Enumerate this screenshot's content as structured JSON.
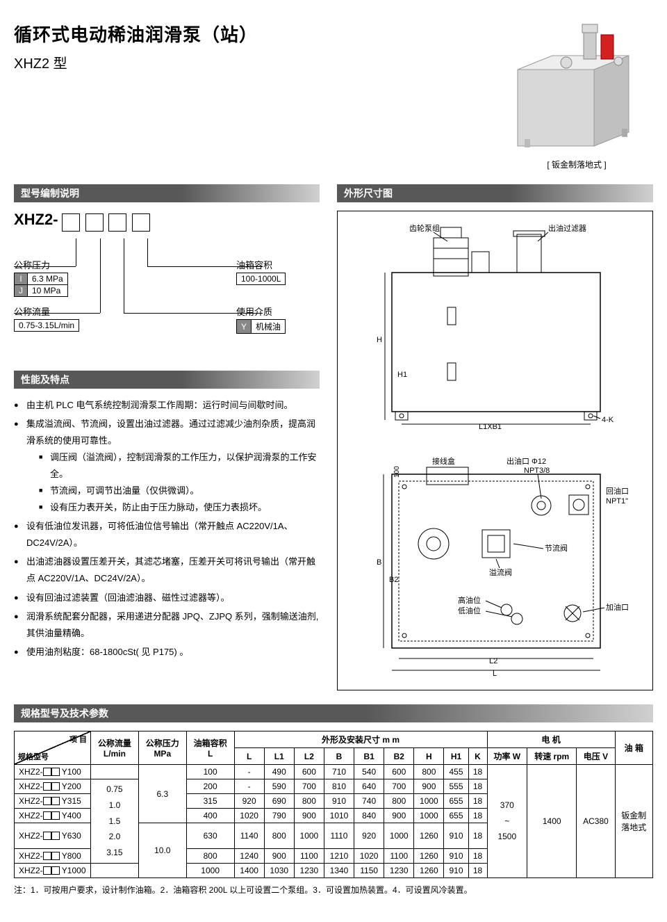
{
  "title": "循环式电动稀油润滑泵（站）",
  "model": "XHZ2 型",
  "product_caption": "[ 钣金制落地式 ]",
  "sections": {
    "model_spec": "型号编制说明",
    "dimensions": "外形尺寸图",
    "features": "性能及特点",
    "spec_params": "规格型号及技术参数"
  },
  "model_code_prefix": "XHZ2-",
  "params": {
    "pressure_label": "公称压力",
    "pressure_rows": [
      {
        "tag": "I",
        "val": "6.3 MPa"
      },
      {
        "tag": "J",
        "val": "10 MPa"
      }
    ],
    "flow_label": "公称流量",
    "flow_val": "0.75-3.15L/min",
    "tank_label": "油箱容积",
    "tank_val": "100-1000L",
    "medium_label": "使用介质",
    "medium_rows": [
      {
        "tag": "Y",
        "val": "机械油"
      }
    ]
  },
  "features": [
    {
      "text": "由主机 PLC 电气系统控制润滑泵工作周期：运行时间与间歇时间。"
    },
    {
      "text": "集成溢流阀、节流阀，设置出油过滤器。通过过滤减少油剂杂质，提高润滑系统的使用可靠性。",
      "subs": [
        "调压阀（溢流阀），控制润滑泵的工作压力，以保护润滑泵的工作安全。",
        "节流阀，可调节出油量（仅供微调）。",
        "设有压力表开关，防止由于压力脉动，使压力表损坏。"
      ]
    },
    {
      "text": "设有低油位发讯器，可将低油位信号输出（常开触点 AC220V/1A、DC24V/2A）。"
    },
    {
      "text": "出油滤油器设置压差开关，其滤芯堵塞，压差开关可将讯号输出（常开触点 AC220V/1A、DC24V/2A）。"
    },
    {
      "text": "设有回油过滤装置（回油滤油器、磁性过滤器等）。"
    },
    {
      "text": "润滑系统配套分配器，采用递进分配器 JPQ、ZJPQ 系列，强制输送油剂, 其供油量精确。"
    },
    {
      "text": "使用油剂粘度：68-1800cSt( 见 P175) 。"
    }
  ],
  "diagram_labels": {
    "gear_pump": "齿轮泵组",
    "oil_filter": "出油过滤器",
    "l1xb1": "L1XB1",
    "k4": "4-K",
    "h": "H",
    "h1": "H1",
    "junction": "接线盒",
    "outlet": "出油口 Φ12",
    "npt38": "NPT3/8",
    "return": "回油口",
    "npt1": "NPT1\"",
    "throttle": "节流阀",
    "overflow": "溢流阀",
    "high_oil": "高油位",
    "low_oil": "低油位",
    "fill": "加油口",
    "l2": "L2",
    "l": "L",
    "b": "B",
    "b2": "B2",
    "d100": "100"
  },
  "spec_headers": {
    "item": "项 目",
    "model": "规格型号",
    "flow": "公称流量",
    "flow_unit": "L/min",
    "pressure": "公称压力",
    "pressure_unit": "MPa",
    "tank": "油箱容积",
    "tank_unit": "L",
    "dims": "外形及安装尺寸 m m",
    "motor": "电    机",
    "tank_type": "油 箱",
    "L": "L",
    "L1": "L1",
    "L2": "L2",
    "B": "B",
    "B1": "B1",
    "B2": "B2",
    "H": "H",
    "H1": "H1",
    "K": "K",
    "power": "功率 W",
    "rpm": "转速 rpm",
    "voltage": "电压 V"
  },
  "spec_rows": [
    {
      "model": "XHZ2-□□ Y100",
      "tank": "100",
      "L": "-",
      "L1": "490",
      "L2": "600",
      "B": "710",
      "B1": "540",
      "B2": "600",
      "H": "800",
      "H1": "455",
      "K": "18"
    },
    {
      "model": "XHZ2-□□ Y200",
      "tank": "200",
      "L": "-",
      "L1": "590",
      "L2": "700",
      "B": "810",
      "B1": "640",
      "B2": "700",
      "H": "900",
      "H1": "555",
      "K": "18"
    },
    {
      "model": "XHZ2-□□ Y315",
      "tank": "315",
      "L": "920",
      "L1": "690",
      "L2": "800",
      "B": "910",
      "B1": "740",
      "B2": "800",
      "H": "1000",
      "H1": "655",
      "K": "18"
    },
    {
      "model": "XHZ2-□□ Y400",
      "tank": "400",
      "L": "1020",
      "L1": "790",
      "L2": "900",
      "B": "1010",
      "B1": "840",
      "B2": "900",
      "H": "1000",
      "H1": "655",
      "K": "18"
    },
    {
      "model": "XHZ2-□□ Y630",
      "tank": "630",
      "L": "1140",
      "L1": "800",
      "L2": "1000",
      "B": "1110",
      "B1": "920",
      "B2": "1000",
      "H": "1260",
      "H1": "910",
      "K": "18"
    },
    {
      "model": "XHZ2-□□ Y800",
      "tank": "800",
      "L": "1240",
      "L1": "900",
      "L2": "1100",
      "B": "1210",
      "B1": "1020",
      "B2": "1100",
      "H": "1260",
      "H1": "910",
      "K": "18"
    },
    {
      "model": "XHZ2-□□ Y1000",
      "tank": "1000",
      "L": "1400",
      "L1": "1030",
      "L2": "1230",
      "B": "1340",
      "B1": "1150",
      "B2": "1230",
      "H": "1260",
      "H1": "910",
      "K": "18"
    }
  ],
  "spec_merged": {
    "flows": "0.75\n1.0\n1.5\n2.0\n3.15",
    "pressure1": "6.3",
    "pressure2": "10.0",
    "power": "370\n~\n1500",
    "rpm": "1400",
    "voltage": "AC380",
    "tank_type": "钣金制\n落地式"
  },
  "footnote": "注：1．可按用户要求，设计制作油箱。2．油箱容积 200L 以上可设置二个泵组。3．可设置加热装置。4．可设置风冷装置。"
}
